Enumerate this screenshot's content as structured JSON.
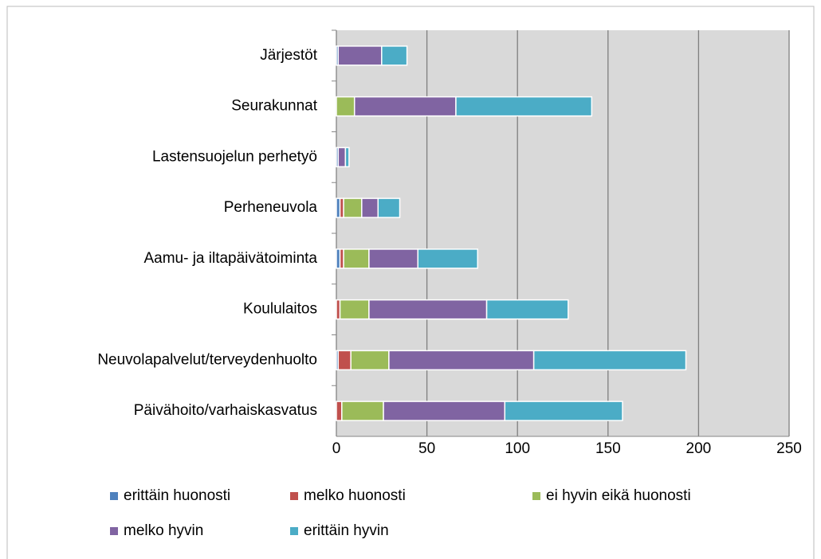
{
  "chart_data": {
    "type": "stacked_bar_horizontal",
    "categories": [
      "Järjestöt",
      "Seurakunnat",
      "Lastensuojelun perhetyö",
      "Perheneuvola",
      "Aamu- ja iltapäivätoiminta",
      "Koululaitos",
      "Neuvolapalvelut/terveydenhuolto",
      "Päivähoito/varhaiskasvatus"
    ],
    "series": [
      {
        "name": "erittäin huonosti",
        "color": "#4f81bd",
        "values": [
          1,
          0,
          1,
          2,
          2,
          0,
          1,
          0
        ]
      },
      {
        "name": "melko huonosti",
        "color": "#c0504d",
        "values": [
          0,
          0,
          0,
          2,
          2,
          2,
          7,
          3
        ]
      },
      {
        "name": "ei hyvin eikä huonosti",
        "color": "#9bbb59",
        "values": [
          0,
          10,
          0,
          10,
          14,
          16,
          21,
          23
        ]
      },
      {
        "name": "melko hyvin",
        "color": "#8064a2",
        "values": [
          24,
          56,
          4,
          9,
          27,
          65,
          80,
          67
        ]
      },
      {
        "name": "erittäin hyvin",
        "color": "#4bacc6",
        "values": [
          14,
          75,
          2,
          12,
          33,
          45,
          84,
          65
        ]
      }
    ],
    "xlim": [
      0,
      250
    ],
    "xticks": [
      0,
      50,
      100,
      150,
      200,
      250
    ],
    "grid": true
  }
}
